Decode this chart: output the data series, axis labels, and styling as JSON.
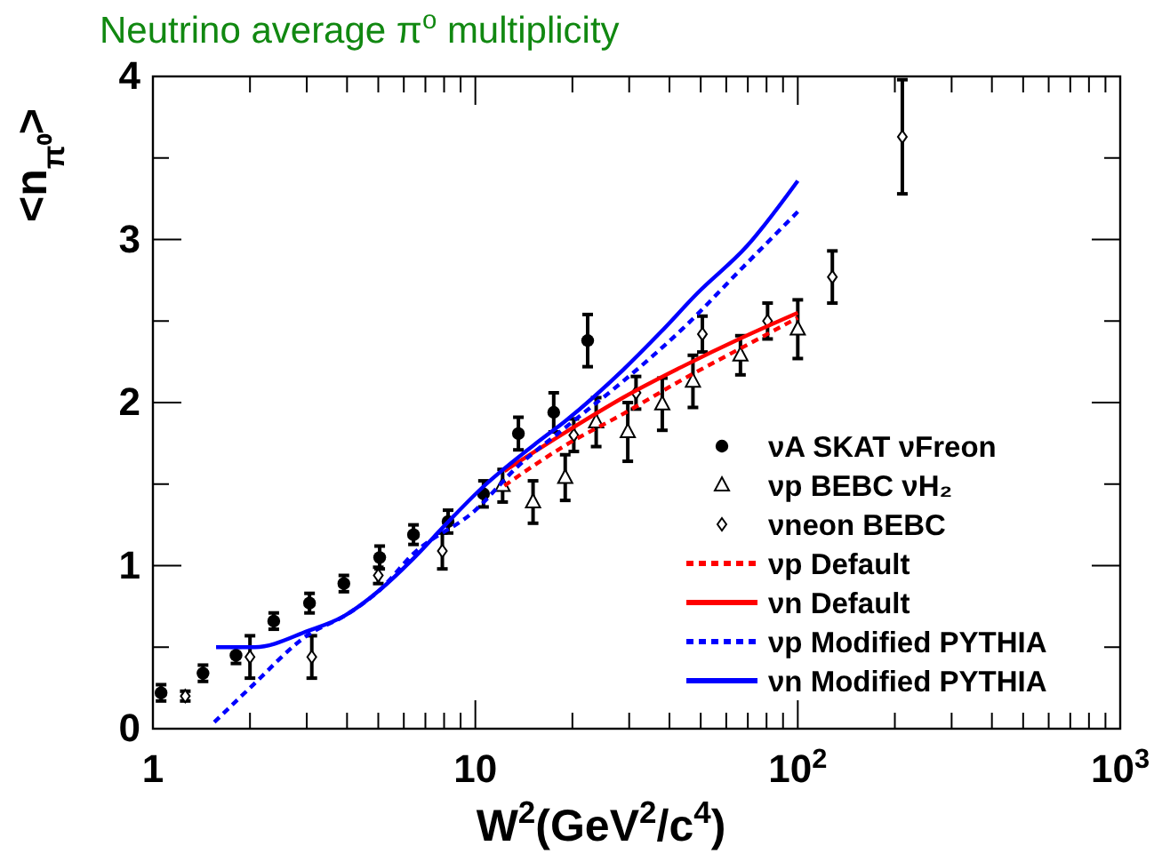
{
  "chart_data": {
    "type": "scatter",
    "title": "Neutrino average  π$^{o}$ multiplicity",
    "xlabel": "W$^{2}$(GeV$^{2}$/c$^{4}$)",
    "ylabel": "<n$_{π⁰}$>",
    "log": "x",
    "xlim": [
      1,
      1000
    ],
    "ylim": [
      0,
      4
    ],
    "xticks": [
      {
        "value": 1,
        "label": "1"
      },
      {
        "value": 2,
        "label": null
      },
      {
        "value": 3,
        "label": null
      },
      {
        "value": 4,
        "label": null
      },
      {
        "value": 5,
        "label": null
      },
      {
        "value": 6,
        "label": null
      },
      {
        "value": 7,
        "label": null
      },
      {
        "value": 8,
        "label": null
      },
      {
        "value": 9,
        "label": null
      },
      {
        "value": 10,
        "label": "10"
      },
      {
        "value": 20,
        "label": null
      },
      {
        "value": 30,
        "label": null
      },
      {
        "value": 40,
        "label": null
      },
      {
        "value": 50,
        "label": null
      },
      {
        "value": 60,
        "label": null
      },
      {
        "value": 70,
        "label": null
      },
      {
        "value": 80,
        "label": null
      },
      {
        "value": 90,
        "label": null
      },
      {
        "value": 100,
        "label": "10$^{2}$"
      },
      {
        "value": 200,
        "label": null
      },
      {
        "value": 300,
        "label": null
      },
      {
        "value": 400,
        "label": null
      },
      {
        "value": 500,
        "label": null
      },
      {
        "value": 600,
        "label": null
      },
      {
        "value": 700,
        "label": null
      },
      {
        "value": 800,
        "label": null
      },
      {
        "value": 900,
        "label": null
      },
      {
        "value": 1000,
        "label": "10$^{3}$"
      }
    ],
    "yticks": [
      0,
      {
        "value": 0.5,
        "label": null
      },
      1,
      {
        "value": 1.5,
        "label": null
      },
      2,
      {
        "value": 2.5,
        "label": null
      },
      3,
      {
        "value": 3.5,
        "label": null
      },
      4
    ],
    "grid": false,
    "legend": "bottom right",
    "series": [
      {
        "name": "νA SKAT  νFreon",
        "marker": "circle",
        "color": "#000000",
        "x": [
          1.06,
          1.43,
          1.81,
          2.37,
          3.06,
          3.91,
          5.05,
          6.43,
          8.23,
          10.6,
          13.6,
          17.5,
          22.3
        ],
        "values": [
          0.22,
          0.34,
          0.45,
          0.66,
          0.77,
          0.89,
          1.05,
          1.19,
          1.27,
          1.44,
          1.81,
          1.94,
          2.38
        ],
        "errors": [
          0.05,
          0.05,
          0.05,
          0.05,
          0.06,
          0.05,
          0.07,
          0.06,
          0.07,
          0.08,
          0.1,
          0.12,
          0.16
        ]
      },
      {
        "name": "νp BEBC νH₂",
        "marker": "triangle",
        "color": "#000000",
        "x": [
          12.15,
          15.1,
          19.0,
          23.7,
          29.7,
          38.0,
          47.3,
          66.4,
          100
        ],
        "values": [
          1.49,
          1.39,
          1.54,
          1.88,
          1.82,
          1.99,
          2.13,
          2.29,
          2.45
        ],
        "errors": [
          0.1,
          0.13,
          0.14,
          0.15,
          0.18,
          0.16,
          0.16,
          0.12,
          0.18
        ]
      },
      {
        "name": "νneon BEBC",
        "marker": "diamond",
        "color": "#000000",
        "x": [
          1.26,
          2.0,
          3.11,
          5.0,
          7.9,
          20.2,
          31.5,
          50.6,
          80.6,
          128,
          211
        ],
        "values": [
          0.2,
          0.44,
          0.44,
          0.94,
          1.09,
          1.8,
          2.06,
          2.42,
          2.5,
          2.77,
          3.63
        ],
        "errors": [
          0.03,
          0.13,
          0.13,
          0.05,
          0.11,
          0.1,
          0.1,
          0.11,
          0.11,
          0.16,
          0.35
        ]
      },
      {
        "name": "νp Default",
        "type": "line",
        "line_style": "dashed",
        "color": "#ff0000",
        "x": [
          12.3,
          19.1,
          28.7,
          43.8,
          67.6,
          100
        ],
        "values": [
          1.49,
          1.74,
          1.93,
          2.14,
          2.34,
          2.52
        ]
      },
      {
        "name": "νn Default",
        "type": "line",
        "line_style": "solid",
        "color": "#ff0000",
        "x": [
          12.3,
          19.1,
          28.7,
          43.8,
          67.6,
          100
        ],
        "values": [
          1.58,
          1.82,
          2.03,
          2.22,
          2.4,
          2.55
        ]
      },
      {
        "name": "νp Modified PYTHIA",
        "type": "line",
        "line_style": "dashed",
        "color": "#0000ff",
        "x": [
          1.55,
          2.0,
          3.05,
          3.91,
          5.05,
          6.4,
          10,
          13.4,
          19.1,
          28.7,
          43.8,
          67.6,
          100
        ],
        "values": [
          0.04,
          0.25,
          0.58,
          0.69,
          0.85,
          1.07,
          1.34,
          1.6,
          1.85,
          2.13,
          2.45,
          2.83,
          3.17
        ]
      },
      {
        "name": "νn Modified PYTHIA",
        "type": "line",
        "line_style": "solid",
        "color": "#0000ff",
        "x": [
          1.57,
          2.07,
          3.03,
          3.91,
          5.05,
          6.4,
          8.07,
          10.4,
          15.2,
          19.1,
          28.7,
          37.5,
          48.8,
          69.6,
          100
        ],
        "values": [
          0.5,
          0.5,
          0.6,
          0.69,
          0.85,
          1.04,
          1.25,
          1.47,
          1.74,
          1.89,
          2.2,
          2.43,
          2.67,
          2.96,
          3.36
        ]
      }
    ]
  }
}
